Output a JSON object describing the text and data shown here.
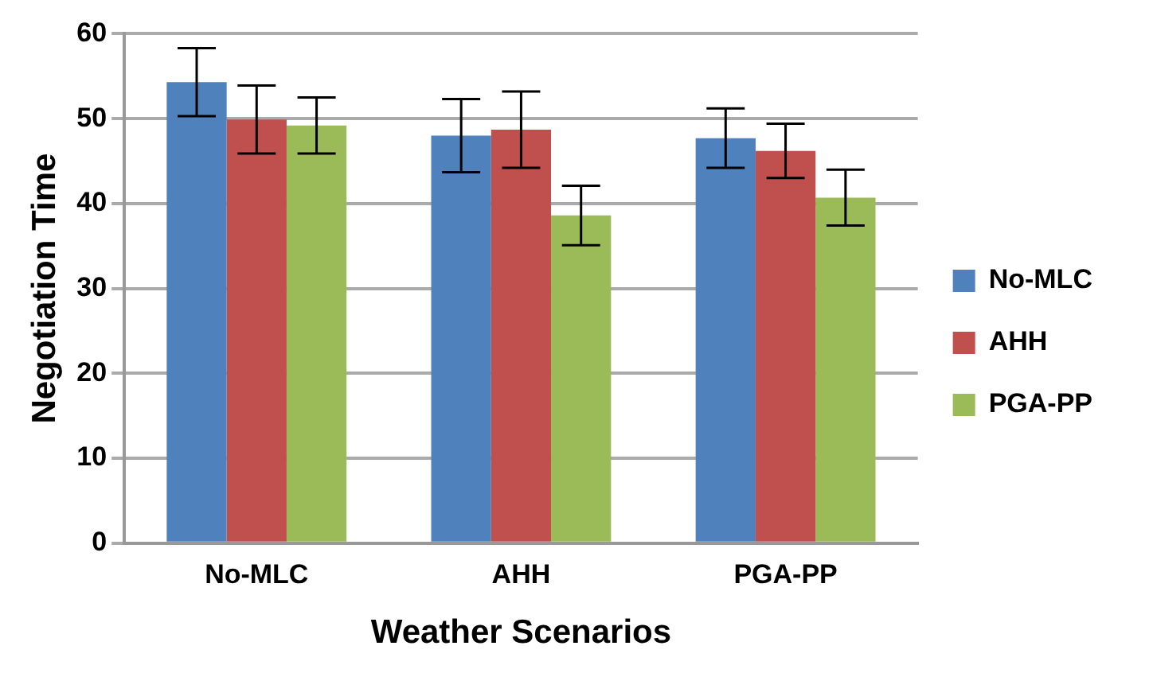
{
  "chart_data": {
    "type": "bar",
    "xlabel": "Weather Scenarios",
    "ylabel": "Negotiation Time",
    "categories": [
      "No-MLC",
      "AHH",
      "PGA-PP"
    ],
    "series": [
      {
        "name": "No-MLC",
        "color": "#4f81bd",
        "values": [
          54.3,
          48.0,
          47.7
        ],
        "errors": [
          4,
          4.3,
          3.5
        ]
      },
      {
        "name": "AHH",
        "color": "#c0504d",
        "values": [
          49.9,
          48.7,
          46.2
        ],
        "errors": [
          4,
          4.5,
          3.2
        ]
      },
      {
        "name": "PGA-PP",
        "color": "#9bbb59",
        "values": [
          49.2,
          38.6,
          40.7
        ],
        "errors": [
          3.3,
          3.5,
          3.3
        ]
      }
    ],
    "ylim": [
      0,
      60
    ],
    "yticks": [
      0,
      10,
      20,
      30,
      40,
      50,
      60
    ],
    "grid": "y",
    "legend": "right"
  }
}
